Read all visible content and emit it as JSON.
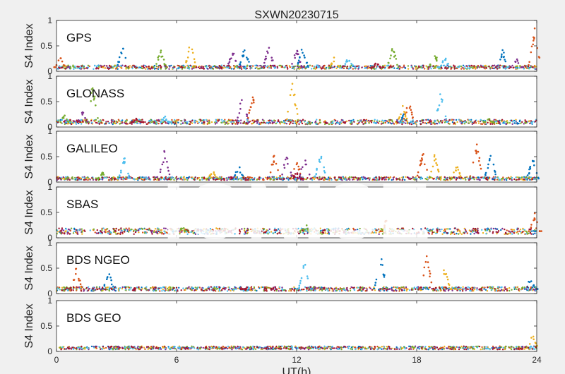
{
  "title": "SXWN20230715",
  "xlabel": "UT(h)",
  "watermark": "IONISE",
  "colors": [
    "#0072BD",
    "#D95319",
    "#EDB120",
    "#7E2F8E",
    "#77AC30",
    "#4DBEEE",
    "#A2142F"
  ],
  "chart_data": [
    {
      "type": "scatter",
      "panel_label": "GPS",
      "ylabel": "S4 Index",
      "xlim": [
        0,
        24
      ],
      "ylim": [
        0,
        1
      ],
      "xticks": [
        0,
        6,
        12,
        18,
        24
      ],
      "yticks": [
        0,
        0.5,
        1
      ],
      "baseline": 0.08,
      "series": [
        {
          "bursts": [
            [
              3.3,
              0.5
            ],
            [
              9.4,
              0.5
            ],
            [
              12.3,
              0.5
            ],
            [
              22.3,
              0.45
            ]
          ]
        },
        {
          "bursts": [
            [
              0.2,
              0.3
            ],
            [
              23.9,
              0.85
            ]
          ]
        },
        {
          "bursts": [
            [
              6.7,
              0.6
            ],
            [
              13.9,
              0.3
            ]
          ]
        },
        {
          "bursts": [
            [
              8.8,
              0.45
            ],
            [
              10.6,
              0.55
            ],
            [
              12.0,
              0.45
            ],
            [
              23.0,
              0.25
            ]
          ]
        },
        {
          "bursts": [
            [
              5.2,
              0.45
            ],
            [
              16.8,
              0.5
            ],
            [
              18.9,
              0.4
            ]
          ]
        },
        {
          "bursts": [
            [
              14.6,
              0.3
            ],
            [
              19.4,
              0.3
            ]
          ]
        },
        {
          "bursts": [
            [
              16.0,
              0.2
            ]
          ]
        }
      ]
    },
    {
      "type": "scatter",
      "panel_label": "GLONASS",
      "ylabel": "S4 Index",
      "xlim": [
        0,
        24
      ],
      "ylim": [
        0,
        1
      ],
      "xticks": [
        0,
        6,
        12,
        18,
        24
      ],
      "yticks": [
        0,
        0.5,
        1
      ],
      "baseline": 0.1,
      "series": [
        {
          "bursts": [
            [
              17.4,
              0.3
            ]
          ]
        },
        {
          "bursts": [
            [
              9.8,
              0.65
            ],
            [
              17.6,
              0.55
            ]
          ]
        },
        {
          "bursts": [
            [
              11.8,
              0.95
            ],
            [
              17.3,
              0.45
            ]
          ]
        },
        {
          "bursts": [
            [
              1.3,
              0.35
            ],
            [
              9.3,
              0.7
            ]
          ]
        },
        {
          "bursts": [
            [
              0.4,
              0.25
            ],
            [
              1.8,
              0.9
            ],
            [
              21.6,
              0.2
            ]
          ]
        },
        {
          "bursts": [
            [
              5.4,
              0.25
            ],
            [
              19.2,
              0.75
            ]
          ]
        },
        {
          "bursts": [
            [
              4.0,
              0.2
            ]
          ]
        }
      ]
    },
    {
      "type": "scatter",
      "panel_label": "GALILEO",
      "ylabel": "S4 Index",
      "xlim": [
        0,
        24
      ],
      "ylim": [
        0,
        1
      ],
      "xticks": [
        0,
        6,
        12,
        18,
        24
      ],
      "yticks": [
        0,
        0.5,
        1
      ],
      "baseline": 0.07,
      "series": [
        {
          "bursts": [
            [
              9.1,
              0.35
            ],
            [
              21.7,
              0.65
            ],
            [
              23.8,
              0.5
            ]
          ]
        },
        {
          "bursts": [
            [
              10.9,
              0.6
            ],
            [
              12.0,
              0.45
            ],
            [
              18.3,
              0.65
            ],
            [
              21.0,
              0.8
            ]
          ]
        },
        {
          "bursts": [
            [
              7.8,
              0.25
            ],
            [
              18.9,
              0.55
            ],
            [
              20.0,
              0.35
            ]
          ]
        },
        {
          "bursts": [
            [
              5.4,
              0.65
            ],
            [
              11.5,
              0.55
            ],
            [
              12.4,
              0.5
            ]
          ]
        },
        {
          "bursts": [
            [
              2.3,
              0.2
            ]
          ]
        },
        {
          "bursts": [
            [
              3.4,
              0.5
            ],
            [
              13.2,
              0.6
            ]
          ]
        },
        {
          "bursts": [
            [
              12.0,
              0.2
            ]
          ]
        }
      ]
    },
    {
      "type": "scatter",
      "panel_label": "SBAS",
      "ylabel": "S4 Index",
      "xlim": [
        0,
        24
      ],
      "ylim": [
        0,
        1
      ],
      "xticks": [
        0,
        6,
        12,
        18,
        24
      ],
      "yticks": [
        0,
        0.5,
        1
      ],
      "baseline": 0.13,
      "series": [
        {
          "bursts": []
        },
        {
          "bursts": [
            [
              16.5,
              0.4
            ],
            [
              23.9,
              0.5
            ]
          ]
        },
        {
          "bursts": []
        },
        {
          "bursts": []
        },
        {
          "bursts": [
            [
              6.3,
              0.25
            ],
            [
              12.5,
              0.25
            ]
          ]
        },
        {
          "bursts": []
        },
        {
          "bursts": []
        }
      ]
    },
    {
      "type": "scatter",
      "panel_label": "BDS NGEO",
      "ylabel": "S4 Index",
      "xlim": [
        0,
        24
      ],
      "ylim": [
        0,
        1
      ],
      "xticks": [
        0,
        6,
        12,
        18,
        24
      ],
      "yticks": [
        0,
        0.5,
        1
      ],
      "baseline": 0.09,
      "series": [
        {
          "bursts": [
            [
              2.6,
              0.45
            ],
            [
              16.2,
              0.8
            ],
            [
              23.7,
              0.35
            ]
          ]
        },
        {
          "bursts": [
            [
              1.0,
              0.55
            ],
            [
              18.5,
              0.8
            ]
          ]
        },
        {
          "bursts": [
            [
              19.4,
              0.6
            ]
          ]
        },
        {
          "bursts": [
            [
              13.0,
              0.2
            ]
          ]
        },
        {
          "bursts": []
        },
        {
          "bursts": [
            [
              12.4,
              0.65
            ]
          ]
        },
        {
          "bursts": [
            [
              9.5,
              0.15
            ]
          ]
        }
      ]
    },
    {
      "type": "scatter",
      "panel_label": "BDS GEO",
      "ylabel": "S4 Index",
      "xlim": [
        0,
        24
      ],
      "ylim": [
        0,
        1
      ],
      "xticks": [
        0,
        6,
        12,
        18,
        24
      ],
      "yticks": [
        0,
        0.5,
        1
      ],
      "baseline": 0.07,
      "series": [
        {
          "bursts": []
        },
        {
          "bursts": []
        },
        {
          "bursts": [
            [
              23.8,
              0.35
            ]
          ]
        },
        {
          "bursts": []
        },
        {
          "bursts": []
        },
        {
          "bursts": []
        },
        {
          "bursts": []
        }
      ]
    }
  ]
}
